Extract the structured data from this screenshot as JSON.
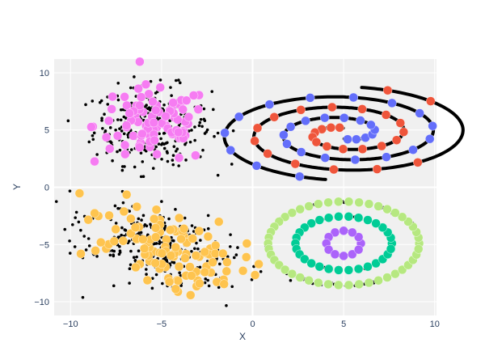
{
  "chart_data": {
    "type": "scatter",
    "title": "",
    "xlabel": "X",
    "ylabel": "Y",
    "xlim": [
      -10.9,
      10.1
    ],
    "ylim": [
      -11.2,
      11.2
    ],
    "x_ticks": [
      -10,
      -5,
      0,
      5,
      10
    ],
    "y_ticks": [
      -10,
      -5,
      0,
      5,
      10
    ],
    "grid": true,
    "legend": "none",
    "colors": {
      "plot_bg": "#f0f0f0",
      "grid": "#ffffff",
      "spiral_a": "#ef553b",
      "spiral_b": "#636efa",
      "blob_top": "#f67cf2",
      "blob_bottom": "#fec44f",
      "ring_outer": "#b6e880",
      "ring_mid": "#00cc96",
      "ring_inner": "#ab63fa",
      "small_points": "#000000"
    },
    "components": {
      "blob_top": {
        "center": [
          -5.5,
          5.4
        ],
        "spread": [
          1.6,
          1.7
        ],
        "small_count": 320,
        "large_count": 95
      },
      "blob_bottom": {
        "center": [
          -5.0,
          -5.2
        ],
        "spread": [
          2.4,
          1.5
        ],
        "small_count": 300,
        "large_count": 110,
        "tilt": -0.55
      },
      "spirals": {
        "center": [
          5.0,
          4.7
        ],
        "sx": 0.52,
        "sy": 0.29,
        "theta_range": [
          1.6,
          14.0
        ],
        "large_count": 30
      },
      "rings": {
        "center": [
          5.0,
          -4.9
        ],
        "radii": [
          [
            8.3,
            3.65
          ],
          [
            5.3,
            2.35
          ],
          [
            1.9,
            1.1
          ]
        ],
        "large_counts": [
          46,
          30,
          12
        ]
      }
    }
  }
}
